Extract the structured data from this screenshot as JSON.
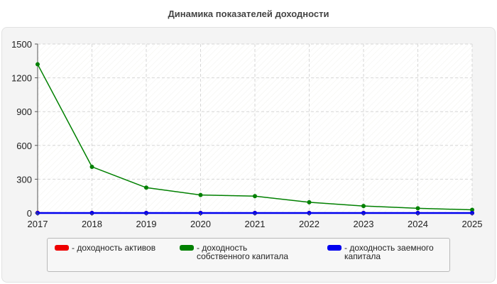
{
  "chart_data": {
    "type": "line",
    "title": "Динамика показателей доходности",
    "xlabel": "",
    "ylabel": "",
    "x": [
      "2017",
      "2018",
      "2019",
      "2020",
      "2021",
      "2022",
      "2023",
      "2024",
      "2025"
    ],
    "ylim": [
      0,
      1500
    ],
    "yticks": [
      "0",
      "300",
      "600",
      "900",
      "1200",
      "1500"
    ],
    "grid": true,
    "legend_position": "bottom",
    "series": [
      {
        "name": "- доходность активов",
        "color": "#ee0000",
        "values": [
          2,
          1,
          1,
          1,
          1,
          1,
          1,
          1,
          1
        ]
      },
      {
        "name": "- доходность собственного капитала",
        "color": "#008000",
        "values": [
          1320,
          410,
          225,
          160,
          150,
          95,
          62,
          42,
          28
        ]
      },
      {
        "name": "- доходность заемного капитала",
        "color": "#0000ee",
        "values": [
          0,
          0,
          0,
          0,
          0,
          0,
          0,
          0,
          0
        ]
      }
    ]
  }
}
